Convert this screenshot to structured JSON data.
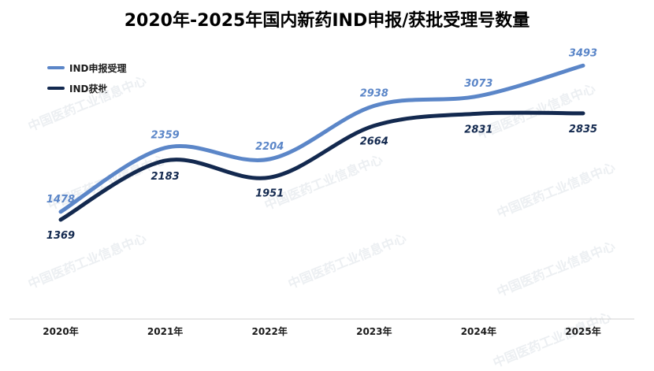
{
  "title": "2020年-2025年国内新药IND申报/获批受理号数量",
  "watermark_text": "中国医药工业信息中心",
  "chart_data": {
    "type": "line",
    "categories": [
      "2020年",
      "2021年",
      "2022年",
      "2023年",
      "2024年",
      "2025年"
    ],
    "series": [
      {
        "name": "IND申报受理",
        "values": [
          1478,
          2359,
          2204,
          2938,
          3073,
          3493
        ],
        "color": "#5b86c8"
      },
      {
        "name": "IND获批",
        "values": [
          1369,
          2183,
          1951,
          2664,
          2831,
          2835
        ],
        "color": "#13294f"
      }
    ],
    "ylim": [
      0,
      3800
    ],
    "grid": false,
    "legend_position": "top-left",
    "xlabel": "",
    "ylabel": ""
  }
}
